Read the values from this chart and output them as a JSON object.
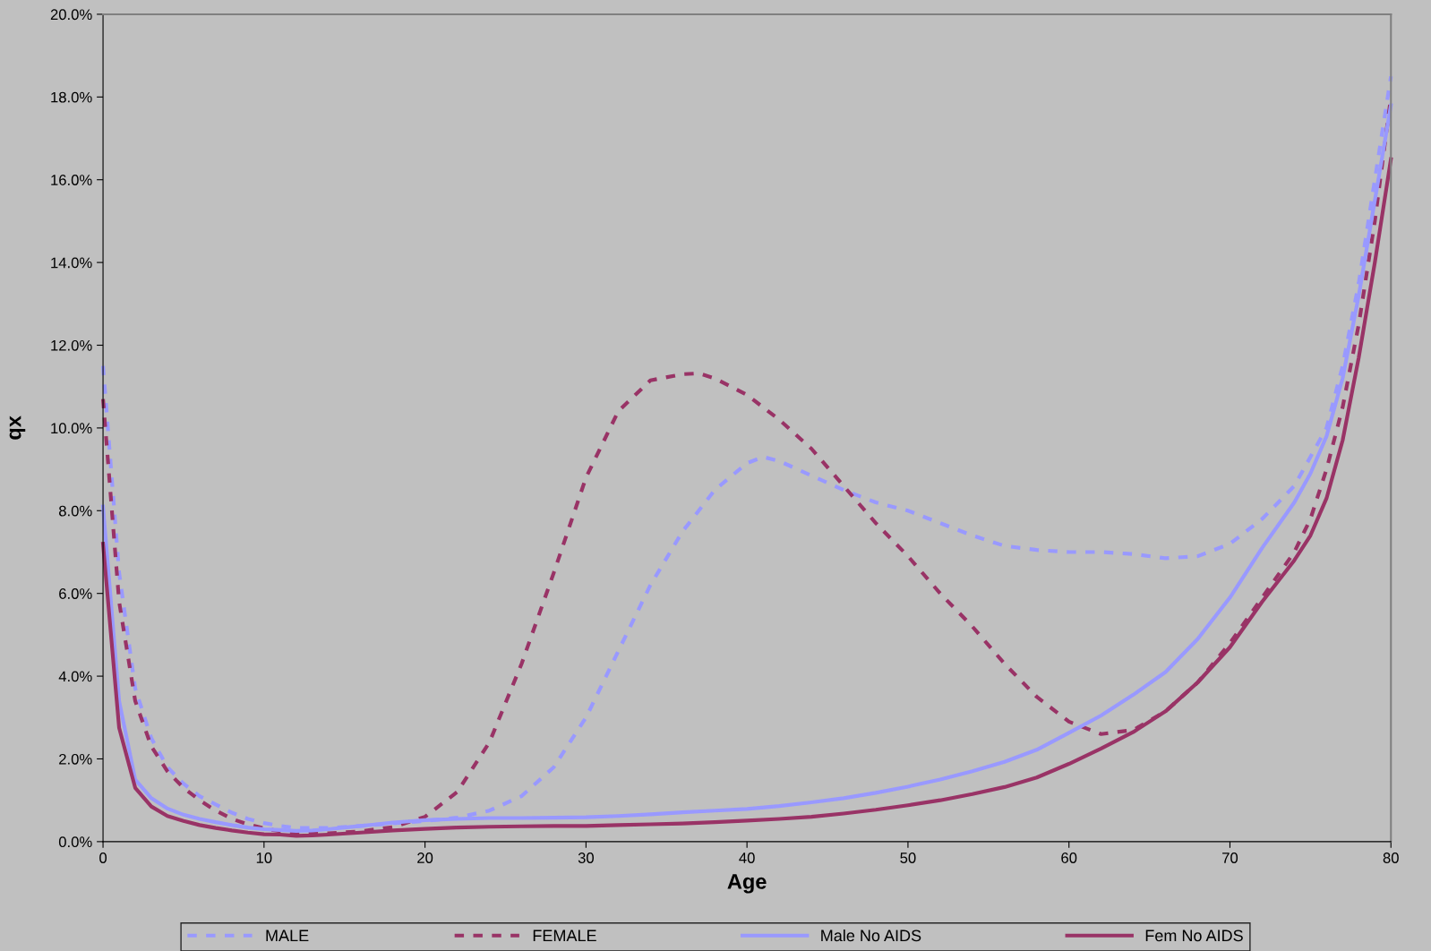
{
  "chart_data": {
    "type": "line",
    "xlabel": "Age",
    "ylabel": "qx",
    "xlim": [
      0,
      80
    ],
    "xticks": [
      0,
      10,
      20,
      30,
      40,
      50,
      60,
      70,
      80
    ],
    "ylim": [
      0,
      20
    ],
    "yticks": [
      {
        "value": 0,
        "label": "0.0%"
      },
      {
        "value": 2,
        "label": "2.0%"
      },
      {
        "value": 4,
        "label": "4.0%"
      },
      {
        "value": 6,
        "label": "6.0%"
      },
      {
        "value": 8,
        "label": "8.0%"
      },
      {
        "value": 10,
        "label": "10.0%"
      },
      {
        "value": 12,
        "label": "12.0%"
      },
      {
        "value": 14,
        "label": "14.0%"
      },
      {
        "value": 16,
        "label": "16.0%"
      },
      {
        "value": 18,
        "label": "18.0%"
      },
      {
        "value": 20,
        "label": "20.0%"
      }
    ],
    "grid": false,
    "legend": "bottom",
    "marker": "none",
    "series": [
      {
        "name": "MALE",
        "color": "#9999ff",
        "line_style": "dashed",
        "x": [
          0,
          1,
          2,
          3,
          4,
          5,
          6,
          7,
          8,
          9,
          10,
          11,
          12,
          14,
          16,
          18,
          20,
          22,
          24,
          26,
          28,
          30,
          32,
          34,
          36,
          38,
          40,
          41,
          42,
          44,
          46,
          48,
          50,
          52,
          54,
          56,
          58,
          60,
          62,
          64,
          66,
          68,
          70,
          72,
          74,
          76,
          77,
          78,
          79,
          80
        ],
        "values": [
          11.5,
          6.5,
          3.7,
          2.5,
          1.8,
          1.4,
          1.1,
          0.9,
          0.7,
          0.55,
          0.45,
          0.38,
          0.33,
          0.33,
          0.38,
          0.44,
          0.5,
          0.58,
          0.75,
          1.1,
          1.8,
          3.0,
          4.6,
          6.2,
          7.5,
          8.5,
          9.15,
          9.3,
          9.2,
          8.85,
          8.5,
          8.2,
          8.0,
          7.7,
          7.4,
          7.15,
          7.05,
          7.0,
          7.0,
          6.95,
          6.85,
          6.9,
          7.2,
          7.8,
          8.6,
          10.0,
          11.5,
          13.5,
          16.0,
          18.5
        ]
      },
      {
        "name": "FEMALE",
        "color": "#993366",
        "line_style": "dashed",
        "x": [
          0,
          1,
          2,
          3,
          4,
          5,
          6,
          7,
          8,
          9,
          10,
          11,
          12,
          14,
          16,
          18,
          20,
          22,
          24,
          26,
          28,
          30,
          32,
          34,
          36,
          37,
          38,
          40,
          42,
          44,
          46,
          48,
          50,
          52,
          54,
          56,
          58,
          60,
          62,
          64,
          66,
          68,
          70,
          72,
          74,
          75,
          76,
          77,
          78,
          79,
          80
        ],
        "values": [
          10.7,
          5.8,
          3.4,
          2.3,
          1.7,
          1.3,
          1.0,
          0.75,
          0.55,
          0.42,
          0.32,
          0.25,
          0.2,
          0.2,
          0.25,
          0.35,
          0.6,
          1.2,
          2.4,
          4.3,
          6.5,
          8.8,
          10.4,
          11.15,
          11.3,
          11.32,
          11.2,
          10.8,
          10.2,
          9.5,
          8.6,
          7.7,
          6.9,
          6.0,
          5.2,
          4.3,
          3.5,
          2.9,
          2.6,
          2.7,
          3.15,
          3.85,
          4.8,
          5.9,
          7.0,
          7.8,
          9.0,
          10.5,
          12.5,
          15.0,
          18.0
        ]
      },
      {
        "name": "Male No AIDS",
        "color": "#9999ff",
        "line_style": "solid",
        "x": [
          0,
          1,
          2,
          3,
          4,
          5,
          6,
          7,
          8,
          9,
          10,
          11,
          12,
          13,
          14,
          15,
          16,
          17,
          18,
          19,
          20,
          22,
          24,
          26,
          28,
          30,
          32,
          34,
          36,
          38,
          40,
          42,
          44,
          46,
          48,
          50,
          52,
          54,
          56,
          58,
          60,
          62,
          64,
          66,
          68,
          70,
          72,
          74,
          75,
          76,
          77,
          78,
          79,
          80
        ],
        "values": [
          8.1,
          3.4,
          1.5,
          1.05,
          0.8,
          0.65,
          0.55,
          0.47,
          0.4,
          0.34,
          0.3,
          0.28,
          0.26,
          0.27,
          0.3,
          0.34,
          0.38,
          0.42,
          0.46,
          0.49,
          0.52,
          0.55,
          0.57,
          0.57,
          0.58,
          0.59,
          0.62,
          0.66,
          0.71,
          0.75,
          0.79,
          0.86,
          0.95,
          1.05,
          1.18,
          1.33,
          1.5,
          1.7,
          1.93,
          2.22,
          2.63,
          3.05,
          3.55,
          4.1,
          4.9,
          5.9,
          7.1,
          8.2,
          8.9,
          9.8,
          11.2,
          13.2,
          15.5,
          17.8
        ]
      },
      {
        "name": "Fem No AIDS",
        "color": "#993366",
        "line_style": "solid",
        "x": [
          0,
          1,
          2,
          3,
          4,
          5,
          6,
          7,
          8,
          9,
          10,
          11,
          12,
          13,
          14,
          16,
          18,
          20,
          22,
          24,
          26,
          28,
          30,
          32,
          34,
          36,
          38,
          40,
          42,
          44,
          46,
          48,
          50,
          52,
          54,
          56,
          58,
          60,
          62,
          64,
          66,
          68,
          70,
          72,
          74,
          75,
          76,
          77,
          78,
          79,
          80
        ],
        "values": [
          7.2,
          2.75,
          1.3,
          0.85,
          0.62,
          0.5,
          0.4,
          0.33,
          0.27,
          0.22,
          0.18,
          0.17,
          0.14,
          0.15,
          0.17,
          0.22,
          0.27,
          0.31,
          0.34,
          0.36,
          0.37,
          0.38,
          0.38,
          0.4,
          0.42,
          0.44,
          0.47,
          0.51,
          0.55,
          0.6,
          0.68,
          0.77,
          0.88,
          1.0,
          1.15,
          1.32,
          1.55,
          1.88,
          2.25,
          2.65,
          3.15,
          3.85,
          4.7,
          5.8,
          6.8,
          7.4,
          8.3,
          9.7,
          11.7,
          14.0,
          16.5
        ]
      }
    ]
  }
}
